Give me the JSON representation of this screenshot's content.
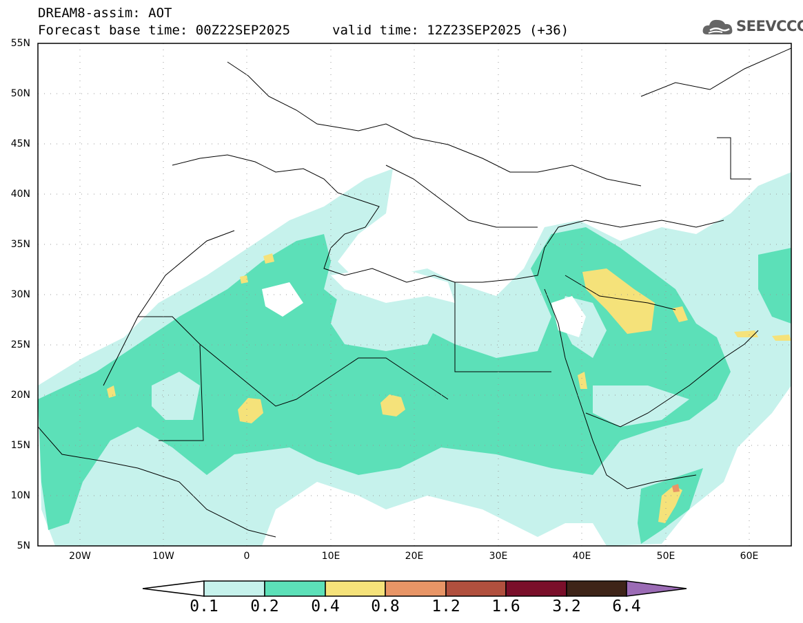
{
  "header": {
    "line1": "DREAM8-assim: AOT",
    "line2": "Forecast base time: 00Z22SEP2025",
    "valid": "valid time: 12Z23SEP2025 (+36)"
  },
  "logo": {
    "text": "SEEVCCC",
    "icon": "cloud-logo-icon"
  },
  "map": {
    "lat_labels": [
      "55N",
      "50N",
      "45N",
      "40N",
      "35N",
      "30N",
      "25N",
      "20N",
      "15N",
      "10N",
      "5N"
    ],
    "lon_labels": [
      "20W",
      "10W",
      "0",
      "10E",
      "20E",
      "30E",
      "40E",
      "50E",
      "60E"
    ],
    "lon_range": [
      -25,
      65
    ],
    "lat_range": [
      5,
      55
    ]
  },
  "colorbar": {
    "labels": [
      "0.1",
      "0.2",
      "0.4",
      "0.8",
      "1.2",
      "1.6",
      "3.2",
      "6.4"
    ],
    "colors": [
      "#c6f2ec",
      "#5ce0b8",
      "#f5e27a",
      "#e89566",
      "#b1503e",
      "#7a0f2a",
      "#3e2418",
      "#9b6bb5"
    ],
    "under_color": "#ffffff"
  },
  "colors": {
    "level1": "#c6f2ec",
    "level2": "#5ce0b8",
    "level3": "#f5e27a",
    "level4": "#e89566"
  }
}
